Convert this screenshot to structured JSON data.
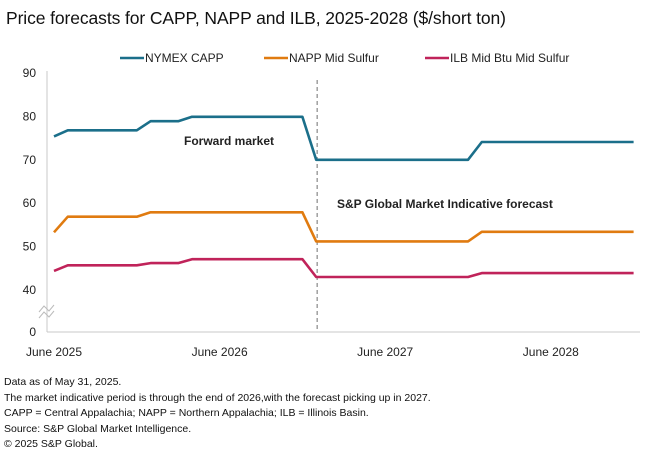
{
  "chart_data": {
    "type": "line",
    "title": "Price forecasts for CAPP, NAPP and ILB, 2025-2028 ($/short ton)",
    "xlabel": "",
    "ylabel": "",
    "ylim": [
      0,
      90
    ],
    "yticks": [
      0,
      40,
      50,
      60,
      70,
      80,
      90
    ],
    "axis_break": "between 0 and 40",
    "x_tick_labels": [
      {
        "month_index": 0,
        "label": "June 2025"
      },
      {
        "month_index": 12,
        "label": "June 2026"
      },
      {
        "month_index": 24,
        "label": "June 2027"
      },
      {
        "month_index": 36,
        "label": "June 2028"
      }
    ],
    "x_start": "June 2025",
    "x_end": "December 2028",
    "grid": false,
    "legend": {
      "placement": "top-center"
    },
    "series": [
      {
        "name": "NYMEX CAPP",
        "color": "#1b6f8a",
        "points": [
          [
            0,
            75.4
          ],
          [
            1,
            76.8
          ],
          [
            6,
            76.8
          ],
          [
            7,
            78.9
          ],
          [
            9,
            78.9
          ],
          [
            10,
            79.9
          ],
          [
            18,
            79.9
          ],
          [
            19,
            70.0
          ],
          [
            30,
            70.0
          ],
          [
            31,
            74.1
          ],
          [
            42,
            74.1
          ]
        ]
      },
      {
        "name": "NAPP Mid Sulfur",
        "color": "#e07b10",
        "points": [
          [
            0,
            53.3
          ],
          [
            1,
            56.9
          ],
          [
            6,
            56.9
          ],
          [
            7,
            57.9
          ],
          [
            18,
            57.9
          ],
          [
            19,
            51.2
          ],
          [
            30,
            51.2
          ],
          [
            31,
            53.4
          ],
          [
            42,
            53.4
          ]
        ]
      },
      {
        "name": "ILB Mid Btu Mid Sulfur",
        "color": "#c0235a",
        "points": [
          [
            0,
            44.4
          ],
          [
            1,
            45.7
          ],
          [
            6,
            45.7
          ],
          [
            7,
            46.2
          ],
          [
            9,
            46.2
          ],
          [
            10,
            47.1
          ],
          [
            18,
            47.1
          ],
          [
            19,
            43.0
          ],
          [
            30,
            43.0
          ],
          [
            31,
            43.9
          ],
          [
            42,
            43.9
          ]
        ]
      }
    ],
    "divider": {
      "month_index": 19,
      "style": "dashed"
    },
    "annotations": [
      {
        "text": "Forward market",
        "region": "before divider"
      },
      {
        "text": "S&P Global Market Indicative forecast",
        "region": "after divider"
      }
    ]
  },
  "footnotes": [
    "Data as of May 31, 2025.",
    "The market indicative period is through the end of 2026,with the forecast picking up in 2027.",
    "CAPP = Central Appalachia; NAPP = Northern Appalachia; ILB = Illinois Basin.",
    "Source: S&P Global Market Intelligence.",
    "© 2025 S&P Global."
  ]
}
